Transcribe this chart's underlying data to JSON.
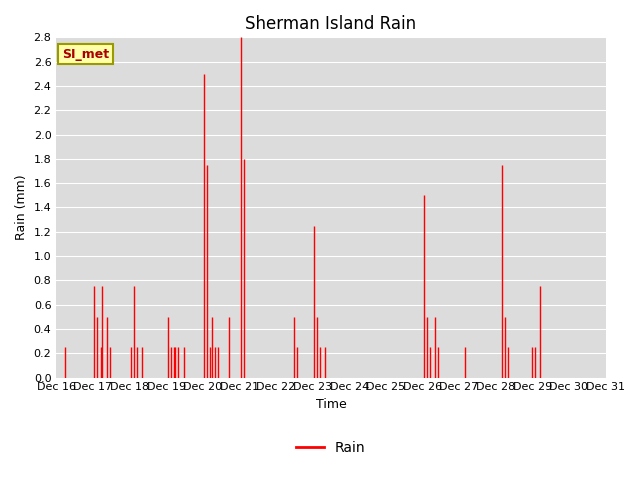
{
  "title": "Sherman Island Rain",
  "xlabel": "Time",
  "ylabel": "Rain (mm)",
  "legend_label": "Rain",
  "line_color": "#ff0000",
  "plot_bg_color": "#dcdcdc",
  "ylim": [
    0.0,
    2.8
  ],
  "yticks": [
    0.0,
    0.2,
    0.4,
    0.6,
    0.8,
    1.0,
    1.2,
    1.4,
    1.6,
    1.8,
    2.0,
    2.2,
    2.4,
    2.6,
    2.8
  ],
  "annotation_text": "SI_met",
  "annotation_bg": "#ffffaa",
  "annotation_border": "#999900",
  "annotation_text_color": "#aa0000",
  "xtick_labels": [
    "Dec 16",
    "Dec 17",
    "Dec 18",
    "Dec 19",
    "Dec 20",
    "Dec 21",
    "Dec 22",
    "Dec 23",
    "Dec 24",
    "Dec 25",
    "Dec 26",
    "Dec 27",
    "Dec 28",
    "Dec 29",
    "Dec 30",
    "Dec 31"
  ],
  "time_x": [
    0,
    0.042,
    0.083,
    0.125,
    0.167,
    0.208,
    0.25,
    0.292,
    0.333,
    0.375,
    0.417,
    0.458,
    0.5,
    0.542,
    0.583,
    0.625,
    0.667,
    0.708,
    0.75,
    0.792,
    0.833,
    0.875,
    0.917,
    0.958,
    1,
    1.042,
    1.083,
    1.125,
    1.167,
    1.208,
    1.25,
    1.292,
    1.333,
    1.375,
    1.417,
    1.458,
    1.5,
    1.542,
    1.583,
    1.625,
    1.667,
    1.708,
    1.75,
    1.792,
    1.833,
    1.875,
    1.917,
    1.958,
    2,
    2.042,
    2.083,
    2.125,
    2.167,
    2.208,
    2.25,
    2.292,
    2.333,
    2.375,
    2.417,
    2.458,
    2.5,
    2.542,
    2.583,
    2.625,
    2.667,
    2.708,
    2.75,
    2.792,
    2.833,
    2.875,
    2.917,
    2.958,
    3,
    3.042,
    3.083,
    3.125,
    3.167,
    3.208,
    3.25,
    3.292,
    3.333,
    3.375,
    3.417,
    3.458,
    3.5,
    3.542,
    3.583,
    3.625,
    3.667,
    3.708,
    3.75,
    3.792,
    3.833,
    3.875,
    3.917,
    3.958,
    4,
    4.042,
    4.083,
    4.125,
    4.167,
    4.208,
    4.25,
    4.292,
    4.333,
    4.375,
    4.417,
    4.458,
    4.5,
    4.542,
    4.583,
    4.625,
    4.667,
    4.708,
    4.75,
    4.792,
    4.833,
    4.875,
    4.917,
    4.958,
    5,
    5.042,
    5.083,
    5.125,
    5.167,
    5.208,
    5.25,
    5.292,
    5.333,
    5.375,
    5.417,
    5.458,
    5.5,
    5.542,
    5.583,
    5.625,
    5.667,
    5.708,
    5.75,
    5.792,
    5.833,
    5.875,
    5.917,
    5.958,
    6,
    6.042,
    6.083,
    6.125,
    6.167,
    6.208,
    6.25,
    6.292,
    6.333,
    6.375,
    6.417,
    6.458,
    6.5,
    6.542,
    6.583,
    6.625,
    6.667,
    6.708,
    6.75,
    6.792,
    6.833,
    6.875,
    6.917,
    6.958,
    7,
    7.042,
    7.083,
    7.125,
    7.167,
    7.208,
    7.25,
    7.292,
    7.333,
    7.375,
    7.417,
    7.458,
    7.5,
    7.542,
    7.583,
    7.625,
    7.667,
    7.708,
    7.75,
    7.792,
    7.833,
    7.875,
    7.917,
    7.958,
    8,
    8.042,
    8.083,
    8.125,
    8.167,
    8.208,
    8.25,
    8.292,
    8.333,
    8.375,
    8.417,
    8.458,
    8.5,
    8.542,
    8.583,
    8.625,
    8.667,
    8.708,
    8.75,
    8.792,
    8.833,
    8.875,
    8.917,
    8.958,
    9,
    9.042,
    9.083,
    9.125,
    9.167,
    9.208,
    9.25,
    9.292,
    9.333,
    9.375,
    9.417,
    9.458,
    9.5,
    9.542,
    9.583,
    9.625,
    9.667,
    9.708,
    9.75,
    9.792,
    9.833,
    9.875,
    9.917,
    9.958,
    10,
    10.042,
    10.083,
    10.125,
    10.167,
    10.208,
    10.25,
    10.292,
    10.333,
    10.375,
    10.417,
    10.458,
    10.5,
    10.542,
    10.583,
    10.625,
    10.667,
    10.708,
    10.75,
    10.792,
    10.833,
    10.875,
    10.917,
    10.958,
    11,
    11.042,
    11.083,
    11.125,
    11.167,
    11.208,
    11.25,
    11.292,
    11.333,
    11.375,
    11.417,
    11.458,
    11.5,
    11.542,
    11.583,
    11.625,
    11.667,
    11.708,
    11.75,
    11.792,
    11.833,
    11.875,
    11.917,
    11.958,
    12,
    12.042,
    12.083,
    12.125,
    12.167,
    12.208,
    12.25,
    12.292,
    12.333,
    12.375,
    12.417,
    12.458,
    12.5,
    12.542,
    12.583,
    12.625,
    12.667,
    12.708,
    12.75,
    12.792,
    12.833,
    12.875,
    12.917,
    12.958,
    13,
    13.042,
    13.083,
    13.125,
    13.167,
    13.208,
    13.25,
    13.292,
    13.333,
    13.375,
    13.417,
    13.458,
    13.5,
    13.542,
    13.583,
    13.625,
    13.667,
    13.708,
    13.75,
    13.792,
    13.833,
    13.875,
    13.917,
    13.958,
    14,
    14.042,
    14.083,
    14.125,
    14.167,
    14.208,
    14.25,
    14.292,
    14.333,
    14.375,
    14.417,
    14.458,
    14.5,
    14.542,
    14.583,
    14.625,
    14.667,
    14.708,
    14.75,
    14.792,
    14.833,
    14.875,
    14.917,
    14.958
  ],
  "rain_y": [
    0.0,
    0.0,
    0.0,
    0.0,
    0.0,
    0.0,
    0.25,
    0.0,
    0.0,
    0.0,
    0.0,
    0.0,
    0.0,
    0.0,
    0.0,
    0.0,
    0.0,
    0.0,
    0.0,
    0.0,
    0.0,
    0.0,
    0.0,
    0.0,
    0.0,
    0.75,
    0.0,
    0.5,
    0.0,
    0.25,
    0.75,
    0.0,
    0.0,
    0.5,
    0.0,
    0.25,
    0.0,
    0.0,
    0.0,
    0.0,
    0.0,
    0.0,
    0.0,
    0.0,
    0.0,
    0.0,
    0.0,
    0.0,
    0.0,
    0.25,
    0.0,
    0.75,
    0.0,
    0.25,
    0.0,
    0.0,
    0.25,
    0.0,
    0.0,
    0.0,
    0.0,
    0.0,
    0.0,
    0.0,
    0.0,
    0.0,
    0.0,
    0.0,
    0.0,
    0.0,
    0.0,
    0.0,
    0.0,
    0.5,
    0.0,
    0.25,
    0.0,
    0.25,
    0.25,
    0.0,
    0.25,
    0.0,
    0.0,
    0.0,
    0.25,
    0.0,
    0.0,
    0.0,
    0.0,
    0.0,
    0.0,
    0.0,
    0.0,
    0.0,
    0.0,
    0.0,
    0.0,
    2.5,
    0.0,
    1.75,
    0.0,
    0.25,
    0.5,
    0.0,
    0.25,
    0.0,
    0.25,
    0.0,
    0.0,
    0.0,
    0.0,
    0.0,
    0.0,
    0.5,
    0.0,
    0.0,
    0.0,
    0.0,
    0.0,
    0.0,
    0.0,
    2.8,
    0.0,
    1.8,
    0.0,
    0.0,
    0.0,
    0.0,
    0.0,
    0.0,
    0.0,
    0.0,
    0.0,
    0.0,
    0.0,
    0.0,
    0.0,
    0.0,
    0.0,
    0.0,
    0.0,
    0.0,
    0.0,
    0.0,
    0.0,
    0.0,
    0.0,
    0.0,
    0.0,
    0.0,
    0.0,
    0.0,
    0.0,
    0.0,
    0.0,
    0.0,
    0.5,
    0.0,
    0.25,
    0.0,
    0.0,
    0.0,
    0.0,
    0.0,
    0.0,
    0.0,
    0.0,
    0.0,
    0.0,
    1.25,
    0.0,
    0.5,
    0.0,
    0.25,
    0.0,
    0.0,
    0.25,
    0.0,
    0.0,
    0.0,
    0.0,
    0.0,
    0.0,
    0.0,
    0.0,
    0.0,
    0.0,
    0.0,
    0.0,
    0.0,
    0.0,
    0.0,
    0.0,
    0.0,
    0.0,
    0.0,
    0.0,
    0.0,
    0.0,
    0.0,
    0.0,
    0.0,
    0.0,
    0.0,
    0.0,
    0.0,
    0.0,
    0.0,
    0.0,
    0.0,
    0.0,
    0.0,
    0.0,
    0.0,
    0.0,
    0.0,
    0.0,
    0.0,
    0.0,
    0.0,
    0.0,
    0.0,
    0.0,
    0.0,
    0.0,
    0.0,
    0.0,
    0.0,
    0.0,
    0.0,
    0.0,
    0.0,
    0.0,
    0.0,
    0.0,
    0.0,
    0.0,
    0.0,
    0.0,
    0.0,
    0.0,
    1.5,
    0.0,
    0.5,
    0.0,
    0.25,
    0.0,
    0.0,
    0.5,
    0.0,
    0.25,
    0.0,
    0.0,
    0.0,
    0.0,
    0.0,
    0.0,
    0.0,
    0.0,
    0.0,
    0.0,
    0.0,
    0.0,
    0.0,
    0.0,
    0.0,
    0.0,
    0.0,
    0.25,
    0.0,
    0.0,
    0.0,
    0.0,
    0.0,
    0.0,
    0.0,
    0.0,
    0.0,
    0.0,
    0.0,
    0.0,
    0.0,
    0.0,
    0.0,
    0.0,
    0.0,
    0.0,
    0.0,
    0.0,
    0.0,
    0.0,
    0.0,
    1.75,
    0.0,
    0.5,
    0.0,
    0.25,
    0.0,
    0.0,
    0.0,
    0.0,
    0.0,
    0.0,
    0.0,
    0.0,
    0.0,
    0.0,
    0.0,
    0.0,
    0.0,
    0.0,
    0.0,
    0.25,
    0.0,
    0.25,
    0.0,
    0.0,
    0.75,
    0.0,
    0.0,
    0.0,
    0.0,
    0.0,
    0.0,
    0.0,
    0.0,
    0.0,
    0.0,
    0.0,
    0.0,
    0.0,
    0.0,
    0.0,
    0.0,
    0.0,
    0.0,
    0.0,
    0.0,
    0.0,
    0.0,
    0.0,
    0.0,
    0.0,
    0.0,
    0.0,
    0.0,
    0.0,
    0.0,
    0.0,
    0.0,
    0.0,
    0.0,
    0.0,
    0.0,
    0.0,
    0.0,
    0.0,
    0.0,
    0.0,
    0.0
  ]
}
